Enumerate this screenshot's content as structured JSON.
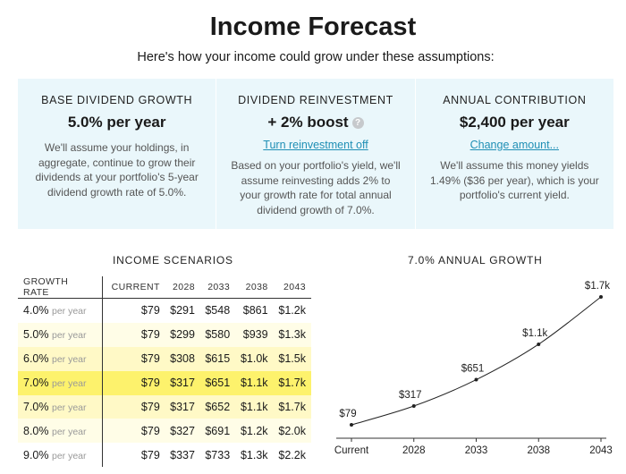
{
  "header": {
    "title": "Income Forecast",
    "subtitle": "Here's how your income could grow under these assumptions:"
  },
  "assumptions": [
    {
      "label": "BASE DIVIDEND GROWTH",
      "value": "5.0% per year",
      "link": "",
      "description": "We'll assume your holdings, in aggregate, continue to grow their dividends at your portfolio's 5-year dividend growth rate of 5.0%."
    },
    {
      "label": "DIVIDEND REINVESTMENT",
      "value": "+ 2% boost",
      "help_icon": "question-circle-icon",
      "link": "Turn reinvestment off",
      "description": "Based on your portfolio's yield, we'll assume reinvesting adds 2% to your growth rate for total annual dividend growth of 7.0%."
    },
    {
      "label": "ANNUAL CONTRIBUTION",
      "value": "$2,400 per year",
      "link": "Change amount...",
      "description": "We'll assume this money yields 1.49% ($36 per year), which is your portfolio's current yield."
    }
  ],
  "scenarios": {
    "title": "INCOME SCENARIOS",
    "headers": [
      "GROWTH RATE",
      "CURRENT",
      "2028",
      "2033",
      "2038",
      "2043"
    ],
    "per_year_label": "per year",
    "rows": [
      {
        "rate": "4.0%",
        "values": [
          "$79",
          "$291",
          "$548",
          "$861",
          "$1.2k"
        ]
      },
      {
        "rate": "5.0%",
        "values": [
          "$79",
          "$299",
          "$580",
          "$939",
          "$1.3k"
        ]
      },
      {
        "rate": "6.0%",
        "values": [
          "$79",
          "$308",
          "$615",
          "$1.0k",
          "$1.5k"
        ]
      },
      {
        "rate": "7.0%",
        "values": [
          "$79",
          "$317",
          "$651",
          "$1.1k",
          "$1.7k"
        ]
      },
      {
        "rate": "7.0%",
        "values": [
          "$79",
          "$317",
          "$652",
          "$1.1k",
          "$1.7k"
        ]
      },
      {
        "rate": "8.0%",
        "values": [
          "$79",
          "$327",
          "$691",
          "$1.2k",
          "$2.0k"
        ]
      },
      {
        "rate": "9.0%",
        "values": [
          "$79",
          "$337",
          "$733",
          "$1.3k",
          "$2.2k"
        ]
      }
    ]
  },
  "colors": {
    "assumptions_bg": "#eaf7fb",
    "link": "#1f8fb5",
    "highlight": "#fdf26c"
  },
  "chart_data": {
    "type": "line",
    "title": "7.0% ANNUAL GROWTH",
    "categories": [
      "Current",
      "2028",
      "2033",
      "2038",
      "2043"
    ],
    "values": [
      79,
      317,
      651,
      1100,
      1700
    ],
    "point_labels": [
      "$79",
      "$317",
      "$651",
      "$1.1k",
      "$1.7k"
    ],
    "ylim": [
      0,
      1700
    ]
  }
}
